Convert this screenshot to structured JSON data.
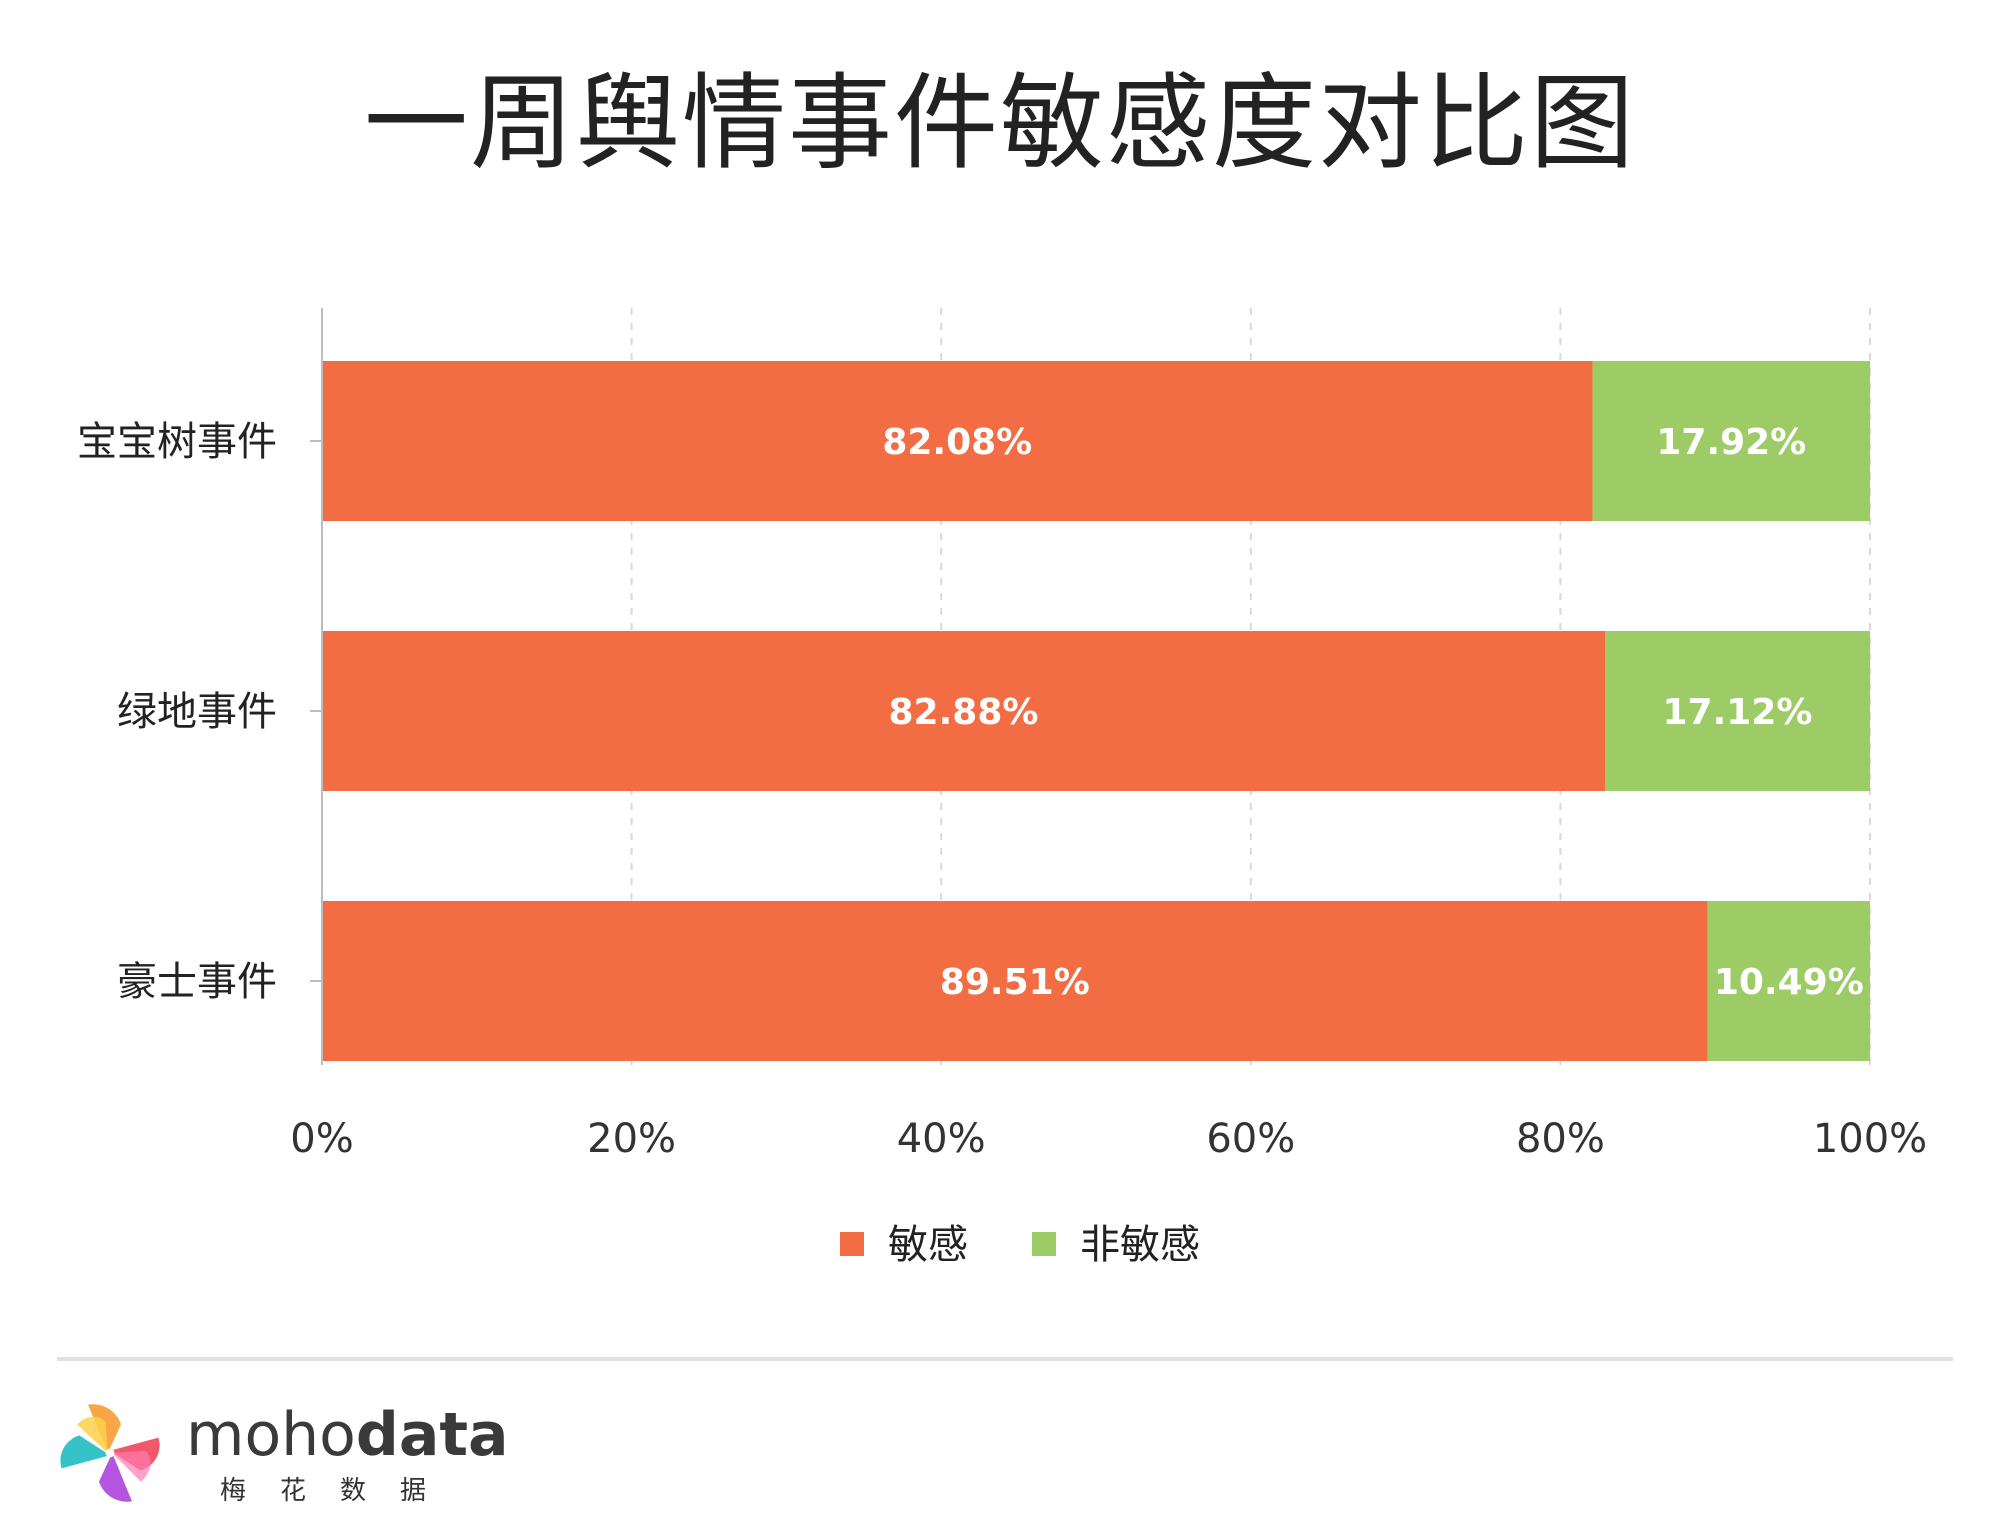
{
  "chart_data": {
    "type": "bar",
    "orientation": "horizontal",
    "stacked": true,
    "title": "一周舆情事件敏感度对比图",
    "categories": [
      "宝宝树事件",
      "绿地事件",
      "豪士事件"
    ],
    "series": [
      {
        "name": "敏感",
        "color": "#f26d43",
        "values": [
          82.08,
          82.88,
          89.51
        ],
        "labels": [
          "82.08%",
          "82.88%",
          "89.51%"
        ]
      },
      {
        "name": "非敏感",
        "color": "#9dcc67",
        "values": [
          17.92,
          17.12,
          10.49
        ],
        "labels": [
          "17.92%",
          "17.12%",
          "10.49%"
        ]
      }
    ],
    "xlim": [
      0,
      100
    ],
    "xticks": [
      0,
      20,
      40,
      60,
      80,
      100
    ],
    "xtick_labels": [
      "0%",
      "20%",
      "40%",
      "60%",
      "80%",
      "100%"
    ],
    "grid": "vertical-dashed",
    "legend": "bottom-center"
  },
  "footer": {
    "brand_light": "moho",
    "brand_bold": "data",
    "brand_sub": "梅花数据"
  }
}
